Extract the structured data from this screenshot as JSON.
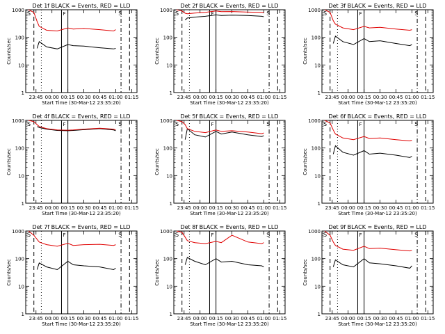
{
  "chart_data": [
    {
      "type": "line",
      "title": "Det 1f BLACK = Events, RED = LLD",
      "xlabel": "Start Time (30-Mar-12 23:35:20)",
      "ylabel": "Counts/sec",
      "yscale": "log",
      "ylim": [
        1,
        1000
      ],
      "xlim": [
        "23:35:20",
        "01:20:00"
      ],
      "x_tick_labels": [
        "23:45",
        "00:00",
        "00:15",
        "00:30",
        "00:45",
        "01:00",
        "01:15"
      ],
      "y_tick_labels": [
        "1",
        "10",
        "100",
        "1000"
      ],
      "x": [
        "23:38",
        "23:43",
        "23:46",
        "23:48",
        "23:55",
        "00:05",
        "00:15",
        "00:20",
        "00:30",
        "00:45",
        "00:58",
        "01:00"
      ],
      "series": [
        {
          "name": "Events",
          "color": "#000000",
          "values": [
            null,
            null,
            40,
            70,
            45,
            38,
            55,
            50,
            48,
            42,
            38,
            40
          ]
        },
        {
          "name": "LLD",
          "color": "#e00000",
          "values": [
            1000,
            800,
            380,
            250,
            180,
            170,
            220,
            200,
            210,
            190,
            170,
            190
          ]
        }
      ],
      "markers": {
        "dashed": [
          "23:43",
          "01:13"
        ],
        "dotted": [
          "23:50"
        ],
        "solid": [
          "00:09",
          "00:15"
        ],
        "dashdot": [
          "01:05"
        ]
      },
      "corner_labels": [
        "S",
        "S"
      ],
      "mid_label": "F"
    },
    {
      "type": "line",
      "title": "Det 2f BLACK = Events, RED = LLD",
      "xlabel": "Start Time (30-Mar-12 23:35:20)",
      "ylabel": "Counts/sec",
      "yscale": "log",
      "ylim": [
        1,
        1000
      ],
      "xlim": [
        "23:35:20",
        "01:20:00"
      ],
      "x_tick_labels": [
        "23:45",
        "00:00",
        "00:15",
        "00:30",
        "00:45",
        "01:00",
        "01:15"
      ],
      "y_tick_labels": [
        "1",
        "10",
        "100",
        "1000"
      ],
      "x": [
        "23:38",
        "23:43",
        "23:46",
        "23:48",
        "23:55",
        "00:05",
        "00:15",
        "00:20",
        "00:30",
        "00:45",
        "00:58",
        "01:00"
      ],
      "series": [
        {
          "name": "Events",
          "color": "#000000",
          "values": [
            null,
            null,
            420,
            500,
            540,
            580,
            650,
            620,
            640,
            620,
            580,
            560
          ]
        },
        {
          "name": "LLD",
          "color": "#e00000",
          "values": [
            1000,
            900,
            750,
            720,
            760,
            800,
            900,
            850,
            860,
            820,
            800,
            780
          ]
        }
      ],
      "markers": {
        "dashed": [
          "23:43",
          "01:13"
        ],
        "dotted": [
          "23:50"
        ],
        "solid": [
          "00:09",
          "00:15"
        ],
        "dashdot": [
          "01:05"
        ]
      },
      "corner_labels": [
        "S",
        "S"
      ],
      "mid_label": "F"
    },
    {
      "type": "line",
      "title": "Det 3f BLACK = Events, RED = LLD",
      "xlabel": "Start Time (30-Mar-12 23:35:20)",
      "ylabel": "Counts/sec",
      "yscale": "log",
      "ylim": [
        1,
        1000
      ],
      "xlim": [
        "23:35:20",
        "01:20:00"
      ],
      "x_tick_labels": [
        "23:45",
        "00:00",
        "00:15",
        "00:30",
        "00:45",
        "01:00",
        "01:15"
      ],
      "y_tick_labels": [
        "1",
        "10",
        "100",
        "1000"
      ],
      "x": [
        "23:38",
        "23:43",
        "23:46",
        "23:48",
        "23:55",
        "00:05",
        "00:15",
        "00:20",
        "00:30",
        "00:45",
        "00:58",
        "01:00"
      ],
      "series": [
        {
          "name": "Events",
          "color": "#000000",
          "values": [
            null,
            null,
            60,
            110,
            70,
            55,
            90,
            70,
            75,
            60,
            50,
            55
          ]
        },
        {
          "name": "LLD",
          "color": "#e00000",
          "values": [
            1000,
            800,
            400,
            300,
            220,
            190,
            250,
            220,
            230,
            200,
            180,
            190
          ]
        }
      ],
      "markers": {
        "dashed": [
          "23:43",
          "01:13"
        ],
        "dotted": [
          "23:50"
        ],
        "solid": [
          "00:09",
          "00:15"
        ],
        "dashdot": [
          "01:05"
        ]
      },
      "corner_labels": [
        "S",
        "S"
      ],
      "mid_label": "F"
    },
    {
      "type": "line",
      "title": "Det 4f BLACK = Events, RED = LLD",
      "xlabel": "Start Time (30-Mar-12 23:35:20)",
      "ylabel": "Counts/sec",
      "yscale": "log",
      "ylim": [
        1,
        1000
      ],
      "xlim": [
        "23:35:20",
        "01:20:00"
      ],
      "x_tick_labels": [
        "23:45",
        "00:00",
        "00:15",
        "00:30",
        "00:45",
        "01:00",
        "01:15"
      ],
      "y_tick_labels": [
        "1",
        "10",
        "100",
        "1000"
      ],
      "x": [
        "23:38",
        "23:43",
        "23:46",
        "23:48",
        "23:55",
        "00:05",
        "00:15",
        "00:20",
        "00:30",
        "00:45",
        "00:58",
        "01:00"
      ],
      "series": [
        {
          "name": "Events",
          "color": "#000000",
          "values": [
            null,
            null,
            600,
            550,
            480,
            430,
            420,
            430,
            460,
            500,
            450,
            420
          ]
        },
        {
          "name": "LLD",
          "color": "#e00000",
          "values": [
            1000,
            900,
            700,
            600,
            500,
            450,
            440,
            450,
            480,
            520,
            480,
            450
          ]
        }
      ],
      "markers": {
        "dashed": [
          "23:43",
          "01:13"
        ],
        "dotted": [
          "23:50"
        ],
        "solid": [
          "00:09",
          "00:15"
        ],
        "dashdot": [
          "01:05"
        ]
      },
      "corner_labels": [
        "S",
        "S"
      ],
      "mid_label": "F"
    },
    {
      "type": "line",
      "title": "Det 5f BLACK = Events, RED = LLD",
      "xlabel": "Start Time (30-Mar-12 23:35:20)",
      "ylabel": "Counts/sec",
      "yscale": "log",
      "ylim": [
        1,
        1000
      ],
      "xlim": [
        "23:35:20",
        "01:20:00"
      ],
      "x_tick_labels": [
        "23:45",
        "00:00",
        "00:15",
        "00:30",
        "00:45",
        "01:00",
        "01:15"
      ],
      "y_tick_labels": [
        "1",
        "10",
        "100",
        "1000"
      ],
      "x": [
        "23:38",
        "23:43",
        "23:46",
        "23:48",
        "23:55",
        "00:05",
        "00:15",
        "00:20",
        "00:30",
        "00:45",
        "00:58",
        "01:00"
      ],
      "series": [
        {
          "name": "Events",
          "color": "#000000",
          "values": [
            null,
            null,
            200,
            500,
            300,
            250,
            400,
            320,
            380,
            300,
            260,
            280
          ]
        },
        {
          "name": "LLD",
          "color": "#e00000",
          "values": [
            1000,
            900,
            700,
            500,
            400,
            360,
            450,
            400,
            420,
            380,
            330,
            350
          ]
        }
      ],
      "markers": {
        "dashed": [
          "23:43",
          "01:13"
        ],
        "dotted": [
          "23:50"
        ],
        "solid": [
          "00:09",
          "00:15"
        ],
        "dashdot": [
          "01:05"
        ]
      },
      "corner_labels": [
        "S",
        "S"
      ],
      "mid_label": "F"
    },
    {
      "type": "line",
      "title": "Det 6f BLACK = Events, RED = LLD",
      "xlabel": "Start Time (30-Mar-12 23:35:20)",
      "ylabel": "Counts/sec",
      "yscale": "log",
      "ylim": [
        1,
        1000
      ],
      "xlim": [
        "23:35:20",
        "01:20:00"
      ],
      "x_tick_labels": [
        "23:45",
        "00:00",
        "00:15",
        "00:30",
        "00:45",
        "01:00",
        "01:15"
      ],
      "y_tick_labels": [
        "1",
        "10",
        "100",
        "1000"
      ],
      "x": [
        "23:38",
        "23:43",
        "23:46",
        "23:48",
        "23:55",
        "00:05",
        "00:15",
        "00:20",
        "00:30",
        "00:45",
        "00:58",
        "01:00"
      ],
      "series": [
        {
          "name": "Events",
          "color": "#000000",
          "values": [
            null,
            null,
            60,
            120,
            70,
            55,
            80,
            60,
            65,
            55,
            45,
            50
          ]
        },
        {
          "name": "LLD",
          "color": "#e00000",
          "values": [
            1000,
            800,
            450,
            320,
            230,
            200,
            260,
            220,
            230,
            200,
            180,
            190
          ]
        }
      ],
      "markers": {
        "dashed": [
          "23:43",
          "01:13"
        ],
        "dotted": [
          "23:50"
        ],
        "solid": [
          "00:09",
          "00:15"
        ],
        "dashdot": [
          "01:05"
        ]
      },
      "corner_labels": [
        "S",
        "S"
      ],
      "mid_label": "F"
    },
    {
      "type": "line",
      "title": "Det 7f BLACK = Events, RED = LLD",
      "xlabel": "Start Time (30-Mar-12 23:35:20)",
      "ylabel": "Counts/sec",
      "yscale": "log",
      "ylim": [
        1,
        1000
      ],
      "xlim": [
        "23:35:20",
        "01:20:00"
      ],
      "x_tick_labels": [
        "23:45",
        "00:00",
        "00:15",
        "00:30",
        "00:45",
        "01:00",
        "01:15"
      ],
      "y_tick_labels": [
        "1",
        "10",
        "100",
        "1000"
      ],
      "x": [
        "23:38",
        "23:43",
        "23:46",
        "23:48",
        "23:55",
        "00:05",
        "00:15",
        "00:20",
        "00:30",
        "00:45",
        "00:58",
        "01:00"
      ],
      "series": [
        {
          "name": "Events",
          "color": "#000000",
          "values": [
            null,
            null,
            40,
            70,
            50,
            40,
            80,
            60,
            55,
            50,
            40,
            45
          ]
        },
        {
          "name": "LLD",
          "color": "#e00000",
          "values": [
            1000,
            700,
            500,
            400,
            320,
            280,
            360,
            300,
            320,
            330,
            300,
            320
          ]
        }
      ],
      "markers": {
        "dashed": [
          "23:43",
          "01:13"
        ],
        "dotted": [
          "23:50"
        ],
        "solid": [
          "00:09",
          "00:15"
        ],
        "dashdot": [
          "01:05"
        ]
      },
      "corner_labels": [
        "S",
        "S"
      ],
      "mid_label": "F"
    },
    {
      "type": "line",
      "title": "Det 8f BLACK = Events, RED = LLD",
      "xlabel": "Start Time (30-Mar-12 23:35:20)",
      "ylabel": "Counts/sec",
      "yscale": "log",
      "ylim": [
        1,
        1000
      ],
      "xlim": [
        "23:35:20",
        "01:20:00"
      ],
      "x_tick_labels": [
        "23:45",
        "00:00",
        "00:15",
        "00:30",
        "00:45",
        "01:00",
        "01:15"
      ],
      "y_tick_labels": [
        "1",
        "10",
        "100",
        "1000"
      ],
      "x": [
        "23:38",
        "23:43",
        "23:46",
        "23:48",
        "23:55",
        "00:05",
        "00:15",
        "00:20",
        "00:30",
        "00:45",
        "00:58",
        "01:00"
      ],
      "series": [
        {
          "name": "Events",
          "color": "#000000",
          "values": [
            null,
            null,
            60,
            110,
            80,
            60,
            100,
            75,
            80,
            60,
            55,
            50
          ]
        },
        {
          "name": "LLD",
          "color": "#e00000",
          "values": [
            1000,
            900,
            600,
            450,
            380,
            350,
            420,
            380,
            700,
            400,
            350,
            380
          ]
        }
      ],
      "markers": {
        "dashed": [
          "23:43",
          "01:13"
        ],
        "dotted": [
          "23:50"
        ],
        "solid": [
          "00:09",
          "00:15"
        ],
        "dashdot": [
          "01:05"
        ]
      },
      "corner_labels": [
        "S",
        "S"
      ],
      "mid_label": "F"
    },
    {
      "type": "line",
      "title": "Det 9f BLACK = Events, RED = LLD",
      "xlabel": "Start Time (30-Mar-12 23:35:20)",
      "ylabel": "Counts/sec",
      "yscale": "log",
      "ylim": [
        1,
        1000
      ],
      "xlim": [
        "23:35:20",
        "01:20:00"
      ],
      "x_tick_labels": [
        "23:45",
        "00:00",
        "00:15",
        "00:30",
        "00:45",
        "01:00",
        "01:15"
      ],
      "y_tick_labels": [
        "1",
        "10",
        "100",
        "1000"
      ],
      "x": [
        "23:38",
        "23:43",
        "23:46",
        "23:48",
        "23:55",
        "00:05",
        "00:15",
        "00:20",
        "00:30",
        "00:45",
        "00:58",
        "01:00"
      ],
      "series": [
        {
          "name": "Events",
          "color": "#000000",
          "values": [
            null,
            null,
            50,
            90,
            60,
            50,
            100,
            70,
            65,
            55,
            45,
            55
          ]
        },
        {
          "name": "LLD",
          "color": "#e00000",
          "values": [
            1000,
            700,
            400,
            300,
            220,
            200,
            280,
            230,
            240,
            210,
            190,
            200
          ]
        }
      ],
      "markers": {
        "dashed": [
          "23:43",
          "01:13"
        ],
        "dotted": [
          "23:50"
        ],
        "solid": [
          "00:09",
          "00:15"
        ],
        "dashdot": [
          "01:05"
        ]
      },
      "corner_labels": [
        "S",
        "S"
      ],
      "mid_label": "F"
    }
  ]
}
